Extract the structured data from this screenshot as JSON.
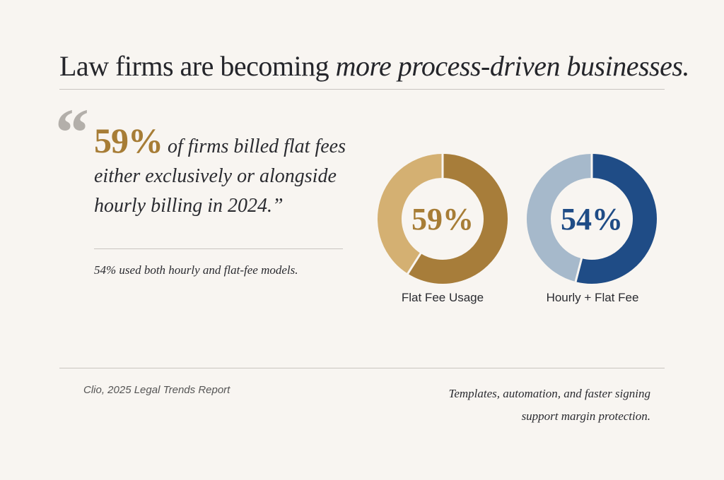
{
  "title": {
    "plain": "Law firms are becoming ",
    "emphasis": "more process-driven businesses."
  },
  "quote": {
    "mark": "“",
    "highlight": "59%",
    "text": " of firms billed flat fees either exclusively or alongside hourly billing in 2024.”"
  },
  "subnote": "54% used both hourly and flat-fee models.",
  "chart_data": [
    {
      "type": "pie",
      "style": "donut",
      "label": "Flat Fee Usage",
      "center_text": "59%",
      "value": 59,
      "remainder": 41,
      "colors": {
        "value": "#a77d3a",
        "remainder": "#d4b072",
        "text": "#a77d36"
      }
    },
    {
      "type": "pie",
      "style": "donut",
      "label": "Hourly + Flat Fee",
      "center_text": "54%",
      "value": 54,
      "remainder": 46,
      "colors": {
        "value": "#1f4c86",
        "remainder": "#a6b9cb",
        "text": "#1f4c86"
      }
    }
  ],
  "footer": {
    "source": "Clio, 2025 Legal Trends Report",
    "note_line1": "Templates, automation, and faster signing",
    "note_line2": "support margin protection."
  }
}
